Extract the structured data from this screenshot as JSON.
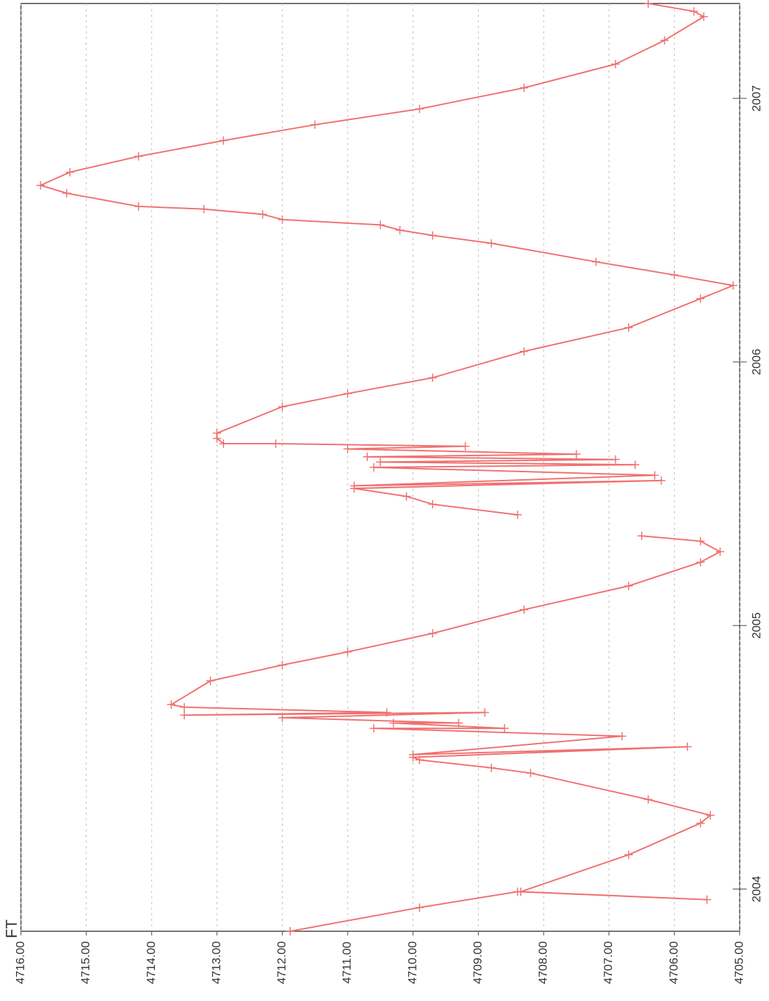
{
  "chart_data": {
    "type": "line",
    "y_label": "FT",
    "color": "#f07070",
    "marker": "+",
    "grid": true,
    "ylim": [
      4705,
      4716
    ],
    "yticks": [
      {
        "value": 4716,
        "label": "4716.00"
      },
      {
        "value": 4715,
        "label": "4715.00"
      },
      {
        "value": 4714,
        "label": "4714.00"
      },
      {
        "value": 4713,
        "label": "4713.00"
      },
      {
        "value": 4712,
        "label": "4712.00"
      },
      {
        "value": 4711,
        "label": "4711.00"
      },
      {
        "value": 4710,
        "label": "4710.00"
      },
      {
        "value": 4709,
        "label": "4709.00"
      },
      {
        "value": 4708,
        "label": "4708.00"
      },
      {
        "value": 4707,
        "label": "4707.00"
      },
      {
        "value": 4706,
        "label": "4706.00"
      },
      {
        "value": 4705,
        "label": "4705.00"
      }
    ],
    "xlim": [
      2003.84,
      2007.36
    ],
    "xticks": [
      2004,
      2005,
      2006,
      2007
    ],
    "x": [
      2003.84,
      2003.93,
      2003.99,
      2003.96,
      2003.99,
      2004.13,
      2004.25,
      2004.28,
      2004.34,
      2004.44,
      2004.46,
      2004.49,
      2004.5,
      2004.54,
      2004.51,
      2004.58,
      2004.61,
      2004.61,
      2004.63,
      2004.63,
      2004.65,
      2004.67,
      2004.66,
      2004.67,
      2004.69,
      2004.7,
      2004.79,
      2004.85,
      2004.9,
      2004.97,
      2005.06,
      2005.15,
      2005.24,
      2005.28,
      2005.32,
      2005.34,
      2005.38,
      2005.42,
      2005.46,
      2005.49,
      2005.52,
      2005.55,
      2005.53,
      2005.57,
      2005.6,
      2005.61,
      2005.62,
      2005.63,
      2005.64,
      2005.65,
      2005.67,
      2005.68,
      2005.69,
      2005.69,
      2005.71,
      2005.73,
      2005.83,
      2005.88,
      2005.94,
      2006.04,
      2006.13,
      2006.24,
      2006.29,
      2006.33,
      2006.38,
      2006.45,
      2006.48,
      2006.5,
      2006.52,
      2006.54,
      2006.56,
      2006.58,
      2006.59,
      2006.64,
      2006.67,
      2006.72,
      2006.78,
      2006.84,
      2006.9,
      2006.96,
      2007.04,
      2007.13,
      2007.22,
      2007.31,
      2007.33,
      2007.36
    ],
    "values": [
      4711.88,
      4709.9,
      4708.4,
      4705.5,
      4708.35,
      4706.7,
      4705.6,
      4705.45,
      4706.4,
      4708.2,
      4708.8,
      4709.9,
      4710.0,
      4705.8,
      4710.0,
      4706.8,
      4710.6,
      4708.6,
      4710.3,
      4709.3,
      4712.0,
      4708.9,
      4713.5,
      4710.4,
      4713.5,
      4713.7,
      4713.1,
      4712.0,
      4711.0,
      4709.7,
      4708.3,
      4706.7,
      4705.6,
      4705.3,
      4705.6,
      4706.5,
      null,
      4708.4,
      4709.7,
      4710.1,
      4710.9,
      4706.2,
      4710.9,
      4706.3,
      4710.6,
      4706.6,
      4710.5,
      4706.9,
      4710.7,
      4707.5,
      4711.0,
      4709.2,
      4712.1,
      4712.9,
      4713.0,
      4713.0,
      4712.0,
      4711.0,
      4709.7,
      4708.3,
      4706.7,
      4705.6,
      4705.1,
      4706.0,
      4707.2,
      4708.8,
      4709.7,
      4710.2,
      4710.5,
      4712.0,
      4712.3,
      4713.2,
      4714.2,
      4715.3,
      4715.7,
      4715.25,
      4714.2,
      4712.9,
      4711.5,
      4709.9,
      4708.3,
      4706.9,
      4706.15,
      4705.55,
      4705.7,
      4706.4
    ]
  }
}
